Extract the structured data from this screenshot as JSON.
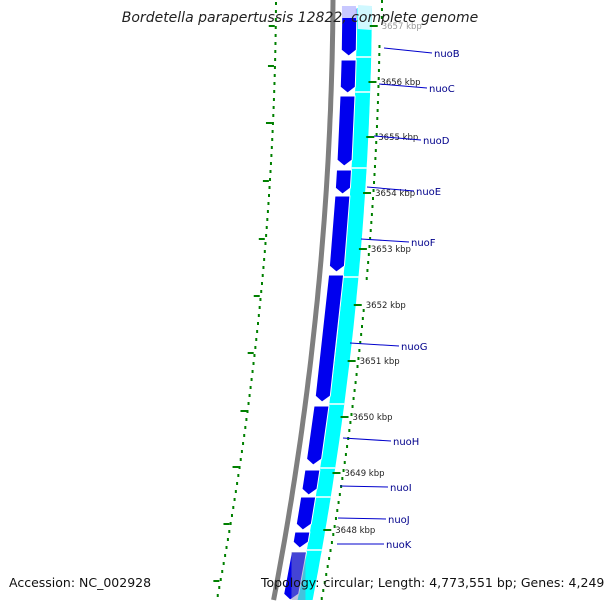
{
  "title": "Bordetella parapertussis 12822, complete genome",
  "accession": "Accession: NC_002928",
  "topology": "Topology: circular; Length: 4,773,551 bp; Genes: 4,249",
  "colors": {
    "backbone": "#7f7f7f",
    "gene_forward": "#0000ee",
    "gene_forward_light": "#c8c8ff",
    "gene_cds": "#00ffff",
    "gene_cds_light": "#d0f8ff",
    "gc_skew": "#008000",
    "label_line": "#0000cc",
    "label_text": "#00008b",
    "tick_text": "#222222"
  },
  "ticks": [
    "3657 kbp",
    "3656 kbp",
    "3655 kbp",
    "3654 kbp",
    "3653 kbp",
    "3652 kbp",
    "3651 kbp",
    "3650 kbp",
    "3649 kbp",
    "3648 kbp"
  ],
  "genes": [
    "nuoB",
    "nuoC",
    "nuoD",
    "nuoE",
    "nuoF",
    "nuoG",
    "nuoH",
    "nuoI",
    "nuoJ",
    "nuoK"
  ]
}
